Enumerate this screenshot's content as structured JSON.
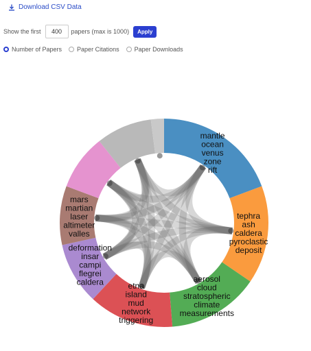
{
  "toolbar": {
    "download_label": "Download CSV Data",
    "download_icon": "download-icon"
  },
  "controls": {
    "show_label": "Show the first",
    "count_value": "400",
    "suffix_label": "papers (max is 1000)",
    "apply_label": "Apply"
  },
  "metric_options": [
    {
      "label": "Number of Papers",
      "selected": true
    },
    {
      "label": "Paper Citations",
      "selected": false
    },
    {
      "label": "Paper Downloads",
      "selected": false
    }
  ],
  "chart_data": {
    "type": "chord",
    "groups": [
      {
        "id": "g1",
        "terms": [
          "mantle",
          "ocean",
          "venus",
          "zone",
          "rift"
        ],
        "color": "#4a8fc2",
        "share": 0.19
      },
      {
        "id": "g2",
        "terms": [
          "tephra",
          "ash",
          "caldera",
          "pyroclastic",
          "deposit"
        ],
        "color": "#fa9b3e",
        "share": 0.15
      },
      {
        "id": "g3",
        "terms": [
          "aerosol",
          "cloud",
          "stratospheric",
          "climate",
          "measurements"
        ],
        "color": "#53ac55",
        "share": 0.14
      },
      {
        "id": "g4",
        "terms": [
          "etna",
          "island",
          "mud",
          "network",
          "triggering"
        ],
        "color": "#dc5155",
        "share": 0.13
      },
      {
        "id": "g5",
        "terms": [
          "deformation",
          "insar",
          "campi",
          "flegrei",
          "caldera"
        ],
        "color": "#aa8ad0",
        "share": 0.095
      },
      {
        "id": "g6",
        "terms": [
          "mars",
          "martian",
          "laser",
          "altimeter",
          "valles"
        ],
        "color": "#a97b72",
        "share": 0.09
      },
      {
        "id": "g7",
        "terms": [],
        "color": "#e593cf",
        "share": 0.085
      },
      {
        "id": "g8",
        "terms": [],
        "color": "#b9b9b9",
        "share": 0.085
      },
      {
        "id": "g9",
        "terms": [],
        "color": "#c9c9c9",
        "share": 0.02
      }
    ],
    "links": [
      [
        "g1",
        "g2"
      ],
      [
        "g1",
        "g3"
      ],
      [
        "g1",
        "g4"
      ],
      [
        "g1",
        "g5"
      ],
      [
        "g1",
        "g6"
      ],
      [
        "g1",
        "g7"
      ],
      [
        "g1",
        "g8"
      ],
      [
        "g2",
        "g3"
      ],
      [
        "g2",
        "g4"
      ],
      [
        "g2",
        "g5"
      ],
      [
        "g2",
        "g6"
      ],
      [
        "g2",
        "g7"
      ],
      [
        "g2",
        "g8"
      ],
      [
        "g3",
        "g4"
      ],
      [
        "g3",
        "g5"
      ],
      [
        "g3",
        "g6"
      ],
      [
        "g3",
        "g7"
      ],
      [
        "g3",
        "g8"
      ],
      [
        "g4",
        "g5"
      ],
      [
        "g4",
        "g6"
      ],
      [
        "g4",
        "g7"
      ],
      [
        "g4",
        "g8"
      ],
      [
        "g5",
        "g6"
      ],
      [
        "g5",
        "g7"
      ],
      [
        "g5",
        "g8"
      ],
      [
        "g6",
        "g7"
      ],
      [
        "g6",
        "g8"
      ],
      [
        "g7",
        "g8"
      ]
    ]
  }
}
